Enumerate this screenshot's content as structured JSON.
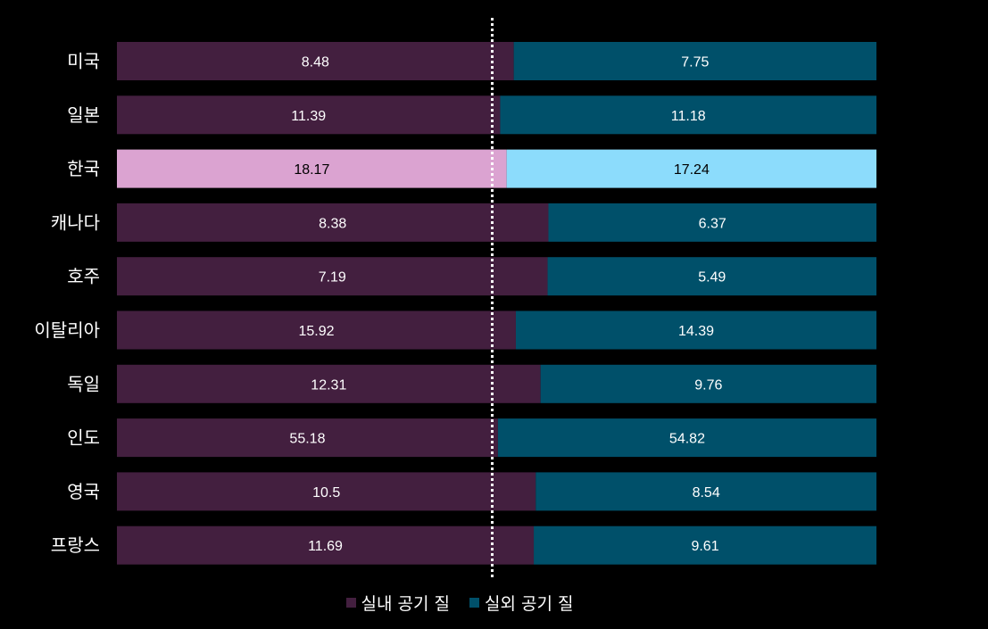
{
  "chart_data": {
    "type": "bar",
    "orientation": "horizontal",
    "stacked": true,
    "normalized": true,
    "categories": [
      "미국",
      "일본",
      "한국",
      "캐나다",
      "호주",
      "이탈리아",
      "독일",
      "인도",
      "영국",
      "프랑스"
    ],
    "series": [
      {
        "name": "실내 공기 질",
        "values": [
          8.48,
          11.39,
          18.17,
          8.38,
          7.19,
          15.92,
          12.31,
          55.18,
          10.5,
          11.69
        ],
        "color": "#431f3f"
      },
      {
        "name": "실외 공기 질",
        "values": [
          7.75,
          11.18,
          17.24,
          6.37,
          5.49,
          14.39,
          9.76,
          54.82,
          8.54,
          9.61
        ],
        "color": "#00506a"
      }
    ],
    "highlight": {
      "category": "한국",
      "colors": [
        "#dba3d1",
        "#8cdcfc"
      ]
    },
    "reference_line": {
      "value_fraction": 0.5,
      "style": "dotted",
      "color": "#ffffff"
    },
    "title": "",
    "xlabel": "",
    "ylabel": "",
    "grid": false,
    "legend_position": "bottom",
    "background": "#000000"
  }
}
